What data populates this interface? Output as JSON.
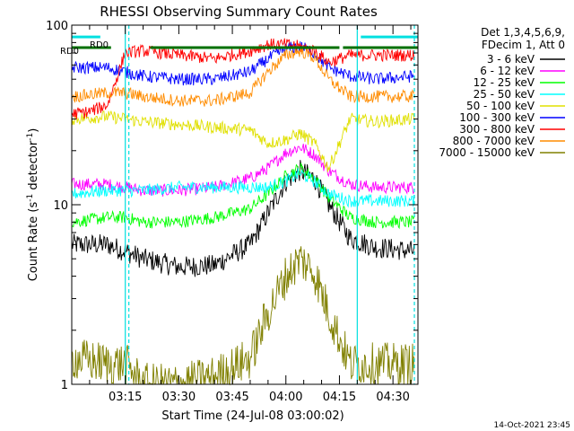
{
  "chart_data": {
    "type": "line",
    "title": "RHESSI Observing Summary Count Rates",
    "xlabel": "Start Time (24-Jul-08 03:00:02)",
    "ylabel": "Count Rate (s",
    "ylabel_sup": "-1",
    "ylabel_tail": " detector",
    "ylabel_end": ")",
    "y_scale": "log",
    "ylim": [
      1,
      100
    ],
    "xlim": [
      "03:00",
      "04:37"
    ],
    "x_ticks": [
      "03:15",
      "03:30",
      "03:45",
      "04:00",
      "04:15",
      "04:30"
    ],
    "y_ticks": [
      "1",
      "10",
      "100"
    ],
    "legend_header": [
      "Det 1,3,4,5,6,9,",
      "FDecim 1, Att 0"
    ],
    "legend_position": "right",
    "footer_date": "14-Oct-2021 23:45",
    "annotations": [
      "RD0",
      "RD0"
    ],
    "night_boundaries": [
      "03:15",
      "04:20"
    ],
    "saa_boundaries": [
      "03:16",
      "04:36"
    ],
    "series": [
      {
        "name": "3 - 6 keV",
        "color": "#000000",
        "x": [
          "03:00",
          "03:10",
          "03:15",
          "03:20",
          "03:30",
          "03:40",
          "03:50",
          "03:55",
          "04:00",
          "04:04",
          "04:08",
          "04:12",
          "04:18",
          "04:25",
          "04:36"
        ],
        "values": [
          6.0,
          6.0,
          5.5,
          5.0,
          4.5,
          4.6,
          6.0,
          9.0,
          13.5,
          15.5,
          14.0,
          10.0,
          6.5,
          5.8,
          5.5
        ]
      },
      {
        "name": "6 - 12 keV",
        "color": "#ff00ff",
        "x": [
          "03:00",
          "03:10",
          "03:15",
          "03:20",
          "03:30",
          "03:40",
          "03:50",
          "03:55",
          "04:00",
          "04:04",
          "04:08",
          "04:12",
          "04:18",
          "04:25",
          "04:36"
        ],
        "values": [
          13,
          13,
          12.5,
          12,
          12,
          12.5,
          14,
          16,
          19.5,
          21,
          19,
          15.5,
          13,
          12.5,
          12.5
        ]
      },
      {
        "name": "12 - 25 keV",
        "color": "#00ff00",
        "x": [
          "03:00",
          "03:10",
          "03:15",
          "03:20",
          "03:30",
          "03:40",
          "03:50",
          "03:55",
          "04:00",
          "04:04",
          "04:08",
          "04:12",
          "04:18",
          "04:25",
          "04:36"
        ],
        "values": [
          8.0,
          8.5,
          8.5,
          8.0,
          8.0,
          8.5,
          9.5,
          11.5,
          14.5,
          16.0,
          14.0,
          11.0,
          8.5,
          8.0,
          8.0
        ]
      },
      {
        "name": "25 - 50 keV",
        "color": "#00ffff",
        "x": [
          "03:00",
          "03:10",
          "03:15",
          "03:20",
          "03:30",
          "03:40",
          "03:50",
          "03:55",
          "04:00",
          "04:04",
          "04:08",
          "04:12",
          "04:18",
          "04:25",
          "04:36"
        ],
        "values": [
          11.5,
          12.0,
          12.0,
          12.0,
          12.5,
          12.5,
          12.5,
          12.5,
          13.5,
          15.0,
          13.5,
          11.5,
          10.5,
          10.5,
          10.5
        ]
      },
      {
        "name": "50 - 100 keV",
        "color": "#e0e000",
        "x": [
          "03:00",
          "03:10",
          "03:15",
          "03:20",
          "03:30",
          "03:40",
          "03:50",
          "03:55",
          "04:00",
          "04:04",
          "04:08",
          "04:12",
          "04:18",
          "04:25",
          "04:36"
        ],
        "values": [
          30,
          31,
          30,
          29,
          28,
          27,
          26,
          22,
          23,
          25,
          22,
          16,
          30,
          29,
          30
        ]
      },
      {
        "name": "100 - 300 keV",
        "color": "#0000ff",
        "x": [
          "03:00",
          "03:10",
          "03:15",
          "03:20",
          "03:30",
          "03:40",
          "03:50",
          "03:55",
          "04:00",
          "04:04",
          "04:08",
          "04:12",
          "04:18",
          "04:25",
          "04:36"
        ],
        "values": [
          58,
          58,
          55,
          52,
          50,
          50,
          55,
          65,
          74,
          76,
          70,
          58,
          52,
          50,
          52
        ]
      },
      {
        "name": "300 - 800 keV",
        "color": "#ff0000",
        "x": [
          "03:00",
          "03:05",
          "03:10",
          "03:15",
          "03:20",
          "03:30",
          "03:40",
          "03:50",
          "03:55",
          "04:00",
          "04:04",
          "04:08",
          "04:12",
          "04:18",
          "04:25",
          "04:36"
        ],
        "values": [
          32,
          33,
          36,
          70,
          72,
          68,
          65,
          72,
          78,
          78,
          76,
          72,
          62,
          68,
          68,
          68
        ]
      },
      {
        "name": "800 - 7000 keV",
        "color": "#ff8c00",
        "x": [
          "03:00",
          "03:10",
          "03:15",
          "03:20",
          "03:30",
          "03:40",
          "03:50",
          "03:55",
          "04:00",
          "04:04",
          "04:08",
          "04:12",
          "04:18",
          "04:25",
          "04:36"
        ],
        "values": [
          40,
          42,
          42,
          40,
          38,
          38,
          42,
          55,
          68,
          72,
          66,
          50,
          40,
          40,
          40
        ]
      },
      {
        "name": "7000 - 15000 keV",
        "color": "#808000",
        "x": [
          "03:00",
          "03:10",
          "03:15",
          "03:20",
          "03:30",
          "03:40",
          "03:50",
          "03:55",
          "04:00",
          "04:04",
          "04:08",
          "04:12",
          "04:18",
          "04:25",
          "04:36"
        ],
        "values": [
          1.4,
          1.3,
          1.3,
          1.0,
          1.0,
          1.1,
          1.4,
          2.5,
          4.0,
          5.0,
          4.2,
          2.5,
          1.3,
          1.3,
          1.3
        ]
      }
    ]
  }
}
